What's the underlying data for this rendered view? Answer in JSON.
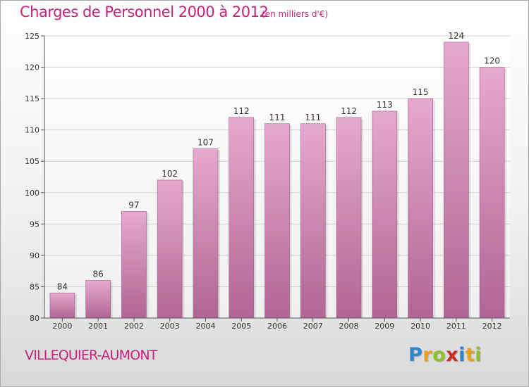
{
  "chart_data": {
    "type": "bar",
    "title": "Charges de Personnel 2000 à 2012",
    "subtitle": "(en milliers d'€)",
    "categories": [
      "2000",
      "2001",
      "2002",
      "2003",
      "2004",
      "2005",
      "2006",
      "2007",
      "2008",
      "2009",
      "2010",
      "2011",
      "2012"
    ],
    "values": [
      84,
      86,
      97,
      102,
      107,
      112,
      111,
      111,
      112,
      113,
      115,
      124,
      120
    ],
    "ylim": [
      80,
      125
    ],
    "yticks": [
      80,
      85,
      90,
      95,
      100,
      105,
      110,
      115,
      120,
      125
    ],
    "grid": true,
    "xlabel": "",
    "ylabel": ""
  },
  "location": "VILLEQUIER-AUMONT",
  "logo": {
    "letters": [
      "P",
      "r",
      "o",
      "x",
      "i",
      "t",
      "i"
    ],
    "colors": [
      "#2f86c8",
      "#e8a21a",
      "#8fbf2a",
      "#d0291f",
      "#2f86c8",
      "#e8a21a",
      "#8fbf2a"
    ]
  },
  "colors": {
    "bar_top": "#e6a9cf",
    "bar_bottom": "#b06692",
    "text_accent": "#c6237b"
  }
}
